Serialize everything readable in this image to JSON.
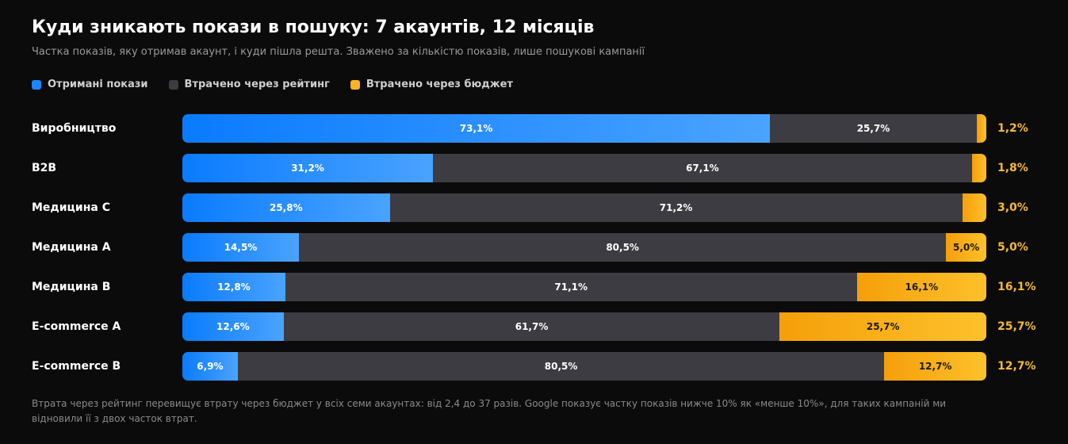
{
  "title": "Куди зникають покази в пошуку: 7 акаунтів, 12 місяців",
  "subtitle": "Частка показів, яку отримав акаунт, і куди пішла решта. Зважено за кількістю показів, лише пошукові кампанії",
  "legend": {
    "received": "Отримані покази",
    "rank": "Втрачено через рейтинг",
    "budget": "Втрачено через бюджет"
  },
  "colors": {
    "received": "#1a86ff",
    "rank": "#3d3c42",
    "budget": "#fbb320",
    "budget_text": "#f5b936",
    "background": "#0b0b0b"
  },
  "chart_data": {
    "type": "bar",
    "orientation": "horizontal",
    "stacked": true,
    "unit": "%",
    "xlim": [
      0,
      100
    ],
    "grid": false,
    "legend_position": "top-left",
    "categories": [
      "Виробництво",
      "B2B",
      "Медицина С",
      "Медицина А",
      "Медицина В",
      "E-commerce A",
      "E-commerce B"
    ],
    "series": [
      {
        "key": "received",
        "name": "Отримані покази",
        "values": [
          73.1,
          31.2,
          25.8,
          14.5,
          12.8,
          12.6,
          6.9
        ],
        "labels": [
          "73,1%",
          "31,2%",
          "25,8%",
          "14,5%",
          "12,8%",
          "12,6%",
          "6,9%"
        ]
      },
      {
        "key": "rank",
        "name": "Втрачено через рейтинг",
        "values": [
          25.7,
          67.1,
          71.2,
          80.5,
          71.1,
          61.7,
          80.5
        ],
        "labels": [
          "25,7%",
          "67,1%",
          "71,2%",
          "80,5%",
          "71,1%",
          "61,7%",
          "80,5%"
        ]
      },
      {
        "key": "budget",
        "name": "Втрачено через бюджет",
        "values": [
          1.2,
          1.8,
          3.0,
          5.0,
          16.1,
          25.7,
          12.7
        ],
        "labels": [
          "",
          "",
          "",
          "5,0%",
          "16,1%",
          "25,7%",
          "12,7%"
        ],
        "outside_labels": [
          "1,2%",
          "1,8%",
          "3,0%",
          "5,0%",
          "16,1%",
          "25,7%",
          "12,7%"
        ]
      }
    ]
  },
  "footnote": "Втрата через рейтинг перевищує втрату через бюджет у всіх семи акаунтах: від 2,4 до 37 разів. Google показує частку показів нижче 10% як «менше 10%», для таких кампаній ми відновили її з двох часток втрат."
}
